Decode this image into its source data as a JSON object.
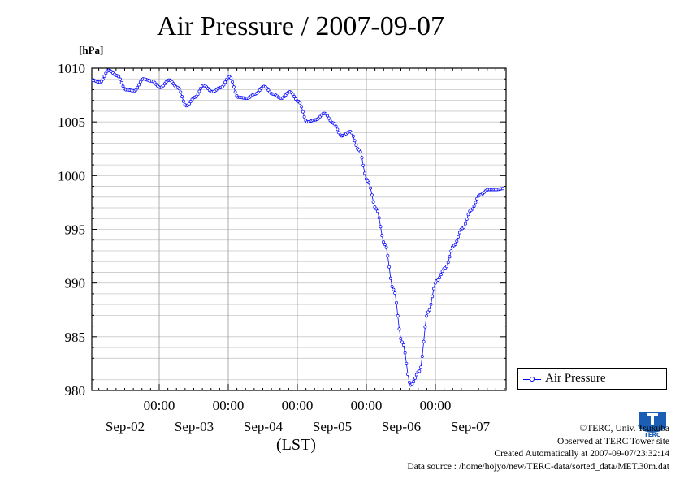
{
  "title": "Air Pressure / 2007-09-07",
  "unit_label": "[hPa]",
  "xlabel": "(LST)",
  "legend_label": "Air Pressure",
  "credits": {
    "line1": "©TERC, Univ. Tsukuba",
    "line2": "Observed at TERC Tower site",
    "line3": "Created Automatically at 2007-09-07/23:32:14",
    "line4": "Data source : /home/hojyo/new/TERC-data/sorted_data/MET.30m.dat"
  },
  "logo_text": "TERC",
  "colors": {
    "series": "#0000ff",
    "grid": "#c8c8c8",
    "frame": "#000000"
  },
  "chart_data": {
    "type": "line",
    "title": "Air Pressure / 2007-09-07",
    "ylabel": "[hPa]",
    "xlabel": "(LST)",
    "ylim": [
      980,
      1010
    ],
    "y_ticks": [
      980,
      985,
      990,
      995,
      1000,
      1005,
      1010
    ],
    "x_range_days": [
      "2007-09-01 23:00",
      "2007-09-07 23:30"
    ],
    "x_major_tick_labels": [
      "00:00",
      "00:00",
      "00:00",
      "00:00",
      "00:00"
    ],
    "x_major_tick_days": [
      "2007-09-03",
      "2007-09-04",
      "2007-09-05",
      "2007-09-06",
      "2007-09-07"
    ],
    "x_date_labels": [
      "Sep-02",
      "Sep-03",
      "Sep-04",
      "Sep-05",
      "Sep-06",
      "Sep-07"
    ],
    "grid": true,
    "legend_position": "bottom-right, outside plot",
    "marker": "open circle",
    "series": [
      {
        "name": "Air Pressure",
        "time": [
          "09-02 00:00",
          "09-02 03:00",
          "09-02 06:00",
          "09-02 09:00",
          "09-02 12:00",
          "09-02 15:00",
          "09-02 18:00",
          "09-02 21:00",
          "09-03 00:00",
          "09-03 03:00",
          "09-03 06:00",
          "09-03 09:00",
          "09-03 12:00",
          "09-03 15:00",
          "09-03 18:00",
          "09-03 21:00",
          "09-04 00:00",
          "09-04 03:00",
          "09-04 06:00",
          "09-04 09:00",
          "09-04 12:00",
          "09-04 15:00",
          "09-04 18:00",
          "09-04 21:00",
          "09-05 00:00",
          "09-05 03:00",
          "09-05 06:00",
          "09-05 09:00",
          "09-05 12:00",
          "09-05 15:00",
          "09-05 18:00",
          "09-05 21:00",
          "09-06 00:00",
          "09-06 03:00",
          "09-06 06:00",
          "09-06 09:00",
          "09-06 12:00",
          "09-06 15:00",
          "09-06 18:00",
          "09-06 21:00",
          "09-07 00:00",
          "09-07 03:00",
          "09-07 06:00",
          "09-07 09:00",
          "09-07 12:00",
          "09-07 15:00",
          "09-07 18:00",
          "09-07 21:00",
          "09-07 23:30"
        ],
        "x_days": [
          0.0417,
          0.1667,
          0.2917,
          0.4167,
          0.5417,
          0.6667,
          0.7917,
          0.9167,
          1.0417,
          1.1667,
          1.2917,
          1.4167,
          1.5417,
          1.6667,
          1.7917,
          1.9167,
          2.0417,
          2.1667,
          2.2917,
          2.4167,
          2.5417,
          2.6667,
          2.7917,
          2.9167,
          3.0417,
          3.1667,
          3.2917,
          3.4167,
          3.5417,
          3.6667,
          3.7917,
          3.9167,
          4.0417,
          4.1667,
          4.2917,
          4.4167,
          4.5417,
          4.6667,
          4.7917,
          4.9167,
          5.0417,
          5.1667,
          5.2917,
          5.4167,
          5.5417,
          5.6667,
          5.7917,
          5.9167,
          6.0
        ],
        "values": [
          1008.9,
          1008.7,
          1009.8,
          1009.3,
          1008.0,
          1007.9,
          1009.0,
          1008.8,
          1008.2,
          1008.9,
          1008.2,
          1006.5,
          1007.3,
          1008.4,
          1007.8,
          1008.2,
          1009.2,
          1007.3,
          1007.2,
          1007.6,
          1008.3,
          1007.6,
          1007.2,
          1007.8,
          1006.9,
          1005.0,
          1005.2,
          1005.8,
          1004.9,
          1003.7,
          1004.1,
          1002.4,
          999.5,
          996.9,
          993.6,
          989.4,
          984.5,
          980.5,
          981.8,
          987.3,
          990.2,
          991.4,
          993.5,
          995.1,
          996.8,
          998.2,
          998.7,
          998.7,
          998.8
        ]
      }
    ]
  }
}
